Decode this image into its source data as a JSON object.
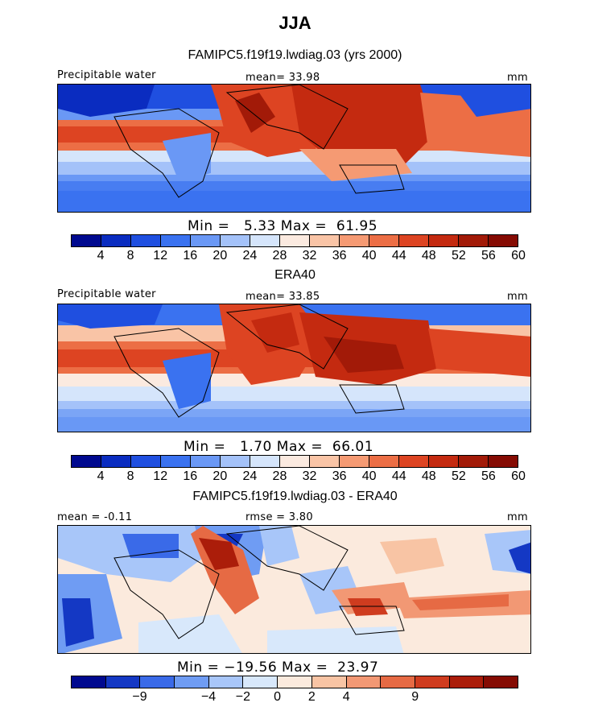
{
  "title": "JJA",
  "panels": [
    {
      "title": "FAMIPC5.f19f19.lwdiag.03 (yrs 2000)",
      "left_label": "Precipitable water",
      "mean_label": "mean=  33.98",
      "units": "mm",
      "minmax": "Min =   5.33 Max =  61.95",
      "palette": "seq",
      "ticks": [
        "4",
        "8",
        "12",
        "16",
        "20",
        "24",
        "28",
        "32",
        "36",
        "40",
        "44",
        "48",
        "52",
        "56",
        "60"
      ]
    },
    {
      "title": "ERA40",
      "left_label": "Precipitable water",
      "mean_label": "mean=  33.85",
      "units": "mm",
      "minmax": "Min =   1.70 Max =  66.01",
      "palette": "seq",
      "ticks": [
        "4",
        "8",
        "12",
        "16",
        "20",
        "24",
        "28",
        "32",
        "36",
        "40",
        "44",
        "48",
        "52",
        "56",
        "60"
      ]
    },
    {
      "title": "FAMIPC5.f19f19.lwdiag.03 - ERA40",
      "left_label": "mean =  -0.11",
      "mean_label": "rmse =   3.80",
      "units": "mm",
      "minmax": "Min = −19.56 Max =  23.97",
      "palette": "diff",
      "ticks": [
        "−9",
        "−4",
        "−2",
        "0",
        "2",
        "4",
        "9"
      ]
    }
  ],
  "colors": {
    "seq": [
      "#00098f",
      "#0a2cc0",
      "#1f4fe0",
      "#3a72f0",
      "#6a98f5",
      "#a4c2f9",
      "#d5e5fb",
      "#fbeae0",
      "#f9c4a6",
      "#f59a73",
      "#ec6e45",
      "#dd4422",
      "#c42a10",
      "#a21a08",
      "#850b03"
    ],
    "diff": [
      "#00098f",
      "#1438c4",
      "#3a6ae8",
      "#6f9cf3",
      "#a8c6f9",
      "#d8e8fb",
      "#fbeadd",
      "#f8c4a4",
      "#f29874",
      "#e66a44",
      "#cf3c1f",
      "#ab1d0a",
      "#850b03"
    ]
  }
}
